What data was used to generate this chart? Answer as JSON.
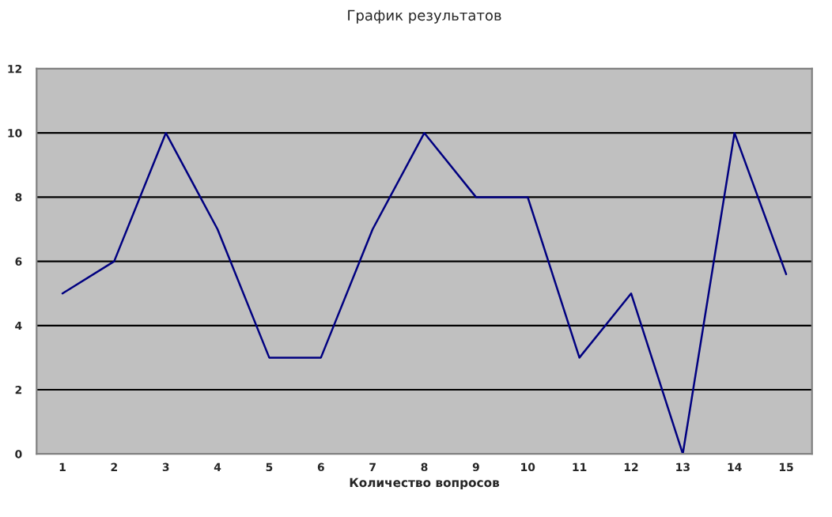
{
  "chart_data": {
    "type": "line",
    "title": "График результатов",
    "xlabel": "Количество вопросов",
    "categories": [
      "1",
      "2",
      "3",
      "4",
      "5",
      "6",
      "7",
      "8",
      "9",
      "10",
      "11",
      "12",
      "13",
      "14",
      "15"
    ],
    "series": [
      {
        "color": "#000080",
        "values": [
          5,
          6,
          10,
          7,
          3,
          3,
          7,
          10,
          8,
          8,
          3,
          5,
          0,
          10,
          5.6
        ]
      }
    ],
    "ylim": [
      0,
      12
    ],
    "yticks": [
      0,
      2,
      4,
      6,
      8,
      10,
      12
    ],
    "grid": "y",
    "legend": false,
    "marker": "none",
    "line_style": "solid"
  }
}
